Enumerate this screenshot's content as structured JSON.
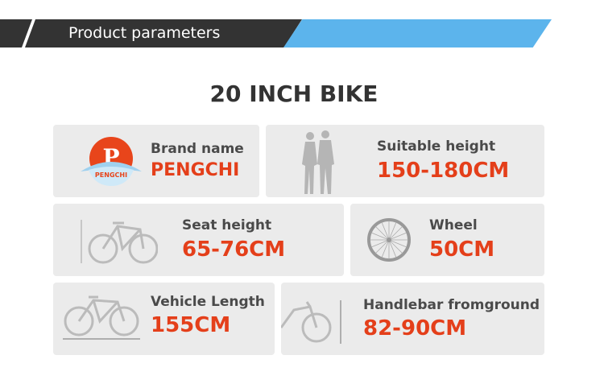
{
  "header": {
    "title": "Product parameters"
  },
  "main_title": "20 INCH BIKE",
  "logo": {
    "text": "PENGCHI"
  },
  "specs": [
    {
      "label": "Brand name",
      "value": "PENGCHI",
      "icon": "brand-logo"
    },
    {
      "label": "Suitable height",
      "value": "150-180CM",
      "icon": "couple-silhouette-icon"
    },
    {
      "label": "Seat height",
      "value": "65-76CM",
      "icon": "bike-seat-height-icon"
    },
    {
      "label": "Wheel",
      "value": "50CM",
      "icon": "wheel-icon"
    },
    {
      "label": "Vehicle Length",
      "value": "155CM",
      "icon": "bike-length-icon"
    },
    {
      "label": "Handlebar fromground",
      "value": "82-90CM",
      "icon": "bike-handlebar-height-icon"
    }
  ],
  "colors": {
    "accent_blue": "#5cb4ec",
    "value_red": "#e43f1a",
    "dark": "#333333",
    "card": "#ebebeb"
  }
}
